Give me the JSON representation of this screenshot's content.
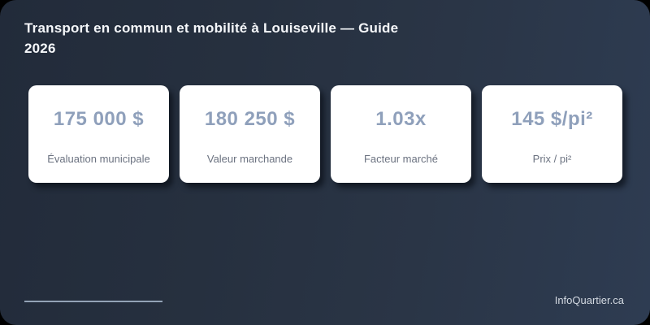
{
  "header": {
    "title": "Transport en commun et mobilité à Louiseville — Guide 2026"
  },
  "cards": [
    {
      "value": "175 000 $",
      "label": "Évaluation municipale"
    },
    {
      "value": "180 250 $",
      "label": "Valeur marchande"
    },
    {
      "value": "1.03x",
      "label": "Facteur marché"
    },
    {
      "value": "145 $/pi²",
      "label": "Prix / pi²"
    }
  ],
  "footer": {
    "brand": "InfoQuartier.ca"
  },
  "colors": {
    "background_gradient_start": "#222b3a",
    "background_gradient_end": "#2e3c52",
    "card_background": "#ffffff",
    "stat_value_text": "#8fa0bb",
    "stat_label_text": "#6b7280",
    "title_text": "#f5f7fa",
    "divider": "#93a3b6",
    "footer_text": "#d4dae2"
  }
}
